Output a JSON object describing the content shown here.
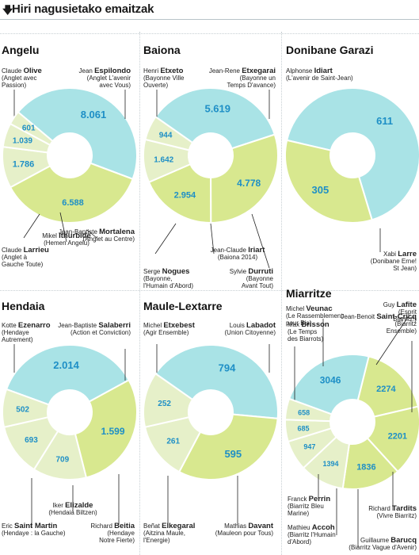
{
  "header": {
    "title": "Hiri nagusietako emaitzak",
    "arrow_icon": "down-arrow"
  },
  "colors": {
    "cyan": "#a9e3e6",
    "lime": "#d8e88f",
    "pale": "#e6f0c9",
    "value": "#1e8fc6",
    "border": "#ffffff"
  },
  "chart_data": [
    {
      "type": "pie",
      "city": "Angelu",
      "slices": [
        {
          "value": "8.061",
          "num": 8061,
          "first": "Claude",
          "last": "Olive",
          "aff": [
            "(Anglet avec",
            "Passion)"
          ],
          "color": "cyan"
        },
        {
          "value": "6.588",
          "num": 6588,
          "first": "Jean",
          "last": "Espilondo",
          "aff": [
            "(Anglet L'avenir",
            "avec Vous)"
          ],
          "color": "lime"
        },
        {
          "value": "1.786",
          "num": 1786,
          "first": "Jean-Baptiste",
          "last": "Mortalena",
          "aff": [
            "(Anglet au Centre)"
          ],
          "color": "pale"
        },
        {
          "value": "1.039",
          "num": 1039,
          "first": "Mikel",
          "last": "Ithurbide",
          "aff": [
            "(Hemen Angelu)"
          ],
          "color": "pale"
        },
        {
          "value": "601",
          "num": 601,
          "first": "Claude",
          "last": "Larrieu",
          "aff": [
            "(Anglet à",
            "Gauche Toute)"
          ],
          "color": "pale"
        }
      ]
    },
    {
      "type": "pie",
      "city": "Baiona",
      "slices": [
        {
          "value": "5.619",
          "num": 5619,
          "first": "Henri",
          "last": "Etxeto",
          "aff": [
            "(Bayonne Ville",
            "Ouverte)"
          ],
          "color": "cyan"
        },
        {
          "value": "4.778",
          "num": 4778,
          "first": "Jean-Rene",
          "last": "Etxegarai",
          "aff": [
            "(Bayonne un",
            "Temps D'avance)"
          ],
          "color": "lime"
        },
        {
          "value": "2.954",
          "num": 2954,
          "first": "Sylvie",
          "last": "Durruti",
          "aff": [
            "(Bayonne",
            "Avant Tout)"
          ],
          "color": "lime"
        },
        {
          "value": "1.642",
          "num": 1642,
          "first": "Jean-Claude",
          "last": "Iriart",
          "aff": [
            "(Baiona 2014)"
          ],
          "color": "pale"
        },
        {
          "value": "944",
          "num": 944,
          "first": "Serge",
          "last": "Nogues",
          "aff": [
            "(Bayonne,",
            "l'Humain d'Abord)"
          ],
          "color": "pale"
        }
      ]
    },
    {
      "type": "pie",
      "city": "Donibane Garazi",
      "slices": [
        {
          "value": "611",
          "num": 611,
          "first": "Alphonse",
          "last": "Idiart",
          "aff": [
            "(L'avenir de Saint-Jean)"
          ],
          "color": "cyan"
        },
        {
          "value": "305",
          "num": 305,
          "first": "Xabi",
          "last": "Larre",
          "aff": [
            "(Donibane Erne!",
            "St Jean)"
          ],
          "color": "lime"
        }
      ]
    },
    {
      "type": "pie",
      "city": "Hendaia",
      "slices": [
        {
          "value": "2.014",
          "num": 2014,
          "first": "Kotte",
          "last": "Ezenarro",
          "aff": [
            "(Hendaye",
            "Autrement)"
          ],
          "color": "cyan"
        },
        {
          "value": "1.599",
          "num": 1599,
          "first": "Jean-Baptiste",
          "last": "Salaberri",
          "aff": [
            "(Action et Conviction)"
          ],
          "color": "lime"
        },
        {
          "value": "709",
          "num": 709,
          "first": "Richard",
          "last": "Beitia",
          "aff": [
            "(Hendaye",
            "Notre Fierte)"
          ],
          "color": "pale"
        },
        {
          "value": "693",
          "num": 693,
          "first": "Iker",
          "last": "Elizalde",
          "aff": [
            "(Hendaia Biltzen)"
          ],
          "color": "pale"
        },
        {
          "value": "502",
          "num": 502,
          "first": "Eric",
          "last": "Saint Martin",
          "aff": [
            "(Hendaye : la Gauche)"
          ],
          "color": "pale"
        }
      ]
    },
    {
      "type": "pie",
      "city": "Maule-Lextarre",
      "slices": [
        {
          "value": "794",
          "num": 794,
          "first": "Michel",
          "last": "Etxebest",
          "aff": [
            "(Agir Ensemble)"
          ],
          "color": "cyan"
        },
        {
          "value": "595",
          "num": 595,
          "first": "Louis",
          "last": "Labadot",
          "aff": [
            "(Union Citoyenne)"
          ],
          "color": "lime"
        },
        {
          "value": "261",
          "num": 261,
          "first": "Mathias",
          "last": "Davant",
          "aff": [
            "(Mauleon pour Tous)"
          ],
          "color": "pale"
        },
        {
          "value": "252",
          "num": 252,
          "first": "Beñat",
          "last": "Elkegaral",
          "aff": [
            "(Aitzina Maule,",
            "l'Energie)"
          ],
          "color": "pale"
        }
      ]
    },
    {
      "type": "pie",
      "city": "Miarritze",
      "slices": [
        {
          "value": "3046",
          "num": 3046,
          "first": "Max",
          "last": "Brisson",
          "aff": [
            "(Le Temps",
            "des Biarrots)"
          ],
          "color": "cyan"
        },
        {
          "value": "2274",
          "num": 2274,
          "first": "Michel",
          "last": "Veunac",
          "aff": [
            "(Le Rassemblement",
            "pour Bia)"
          ],
          "color": "lime"
        },
        {
          "value": "2201",
          "num": 2201,
          "first": "Guy",
          "last": "Lafite",
          "aff": [
            "(Esprit",
            "Biarritz!)"
          ],
          "color": "lime"
        },
        {
          "value": "1836",
          "num": 1836,
          "first": "Jean-Benoit",
          "last": "Saint-Cricq",
          "aff": [
            "(Biarritz",
            "Ensemble)"
          ],
          "color": "lime"
        },
        {
          "value": "1394",
          "num": 1394,
          "first": "Richard",
          "last": "Tardits",
          "aff": [
            "(Vivre Biarritz)"
          ],
          "color": "pale"
        },
        {
          "value": "947",
          "num": 947,
          "first": "Guillaume",
          "last": "Barucq",
          "aff": [
            "(Biarritz Vague d'Avenir)"
          ],
          "color": "pale"
        },
        {
          "value": "685",
          "num": 685,
          "first": "Mathieu",
          "last": "Accoh",
          "aff": [
            "(Biarritz l'Humain",
            "d'Abord)"
          ],
          "color": "pale"
        },
        {
          "value": "658",
          "num": 658,
          "first": "Franck",
          "last": "Perrin",
          "aff": [
            "(Biarritz Bleu",
            "Marine)"
          ],
          "color": "pale"
        }
      ]
    }
  ]
}
